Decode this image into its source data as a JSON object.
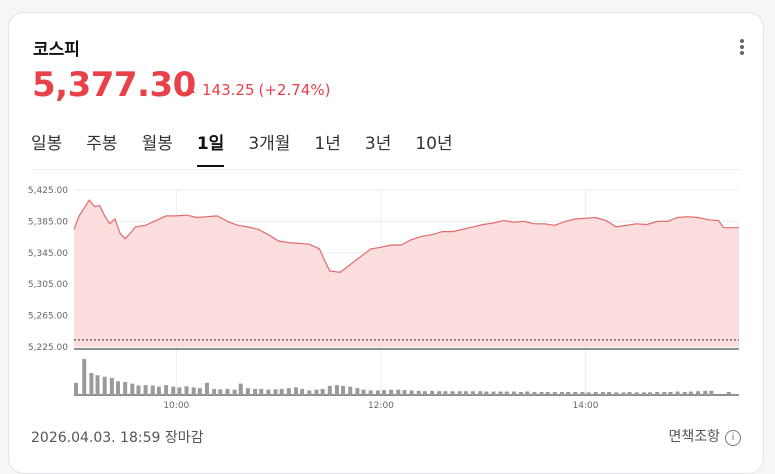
{
  "header": {
    "title": "코스피",
    "price": "5,377.30",
    "change": "143.25",
    "change_pct": "(+2.74%)"
  },
  "tabs": [
    {
      "label": "일봉"
    },
    {
      "label": "주봉"
    },
    {
      "label": "월봉"
    },
    {
      "label": "1일",
      "active": true
    },
    {
      "label": "3개월"
    },
    {
      "label": "1년"
    },
    {
      "label": "3년"
    },
    {
      "label": "10년"
    }
  ],
  "footer": {
    "datetime": "2026.04.03. 18:59 장마감",
    "disclaimer": "면책조항",
    "info_icon": "info-icon"
  },
  "colors": {
    "up": "#e8414a",
    "area": "#fddcdc",
    "line": "#e36a6a",
    "volume": "#9a9a9a"
  },
  "chart_data": {
    "type": "area",
    "y_ticks": [
      "5,425.00",
      "5,385.00",
      "5,345.00",
      "5,305.00",
      "5,265.00",
      "5,225.00"
    ],
    "ylim": [
      5225,
      5425
    ],
    "reference_value": 5234.05,
    "x_ticks": [
      "10:00",
      "12:00",
      "14:00"
    ],
    "x_range_hours": [
      9,
      15.5
    ],
    "price_series": [
      [
        9.0,
        5375
      ],
      [
        9.05,
        5392
      ],
      [
        9.1,
        5402
      ],
      [
        9.15,
        5412
      ],
      [
        9.2,
        5404
      ],
      [
        9.25,
        5405
      ],
      [
        9.3,
        5392
      ],
      [
        9.35,
        5382
      ],
      [
        9.4,
        5388
      ],
      [
        9.45,
        5370
      ],
      [
        9.5,
        5363
      ],
      [
        9.55,
        5370
      ],
      [
        9.6,
        5378
      ],
      [
        9.7,
        5380
      ],
      [
        9.8,
        5386
      ],
      [
        9.9,
        5392
      ],
      [
        10.0,
        5392
      ],
      [
        10.1,
        5393
      ],
      [
        10.2,
        5390
      ],
      [
        10.3,
        5391
      ],
      [
        10.4,
        5392
      ],
      [
        10.5,
        5385
      ],
      [
        10.6,
        5380
      ],
      [
        10.7,
        5378
      ],
      [
        10.8,
        5375
      ],
      [
        10.9,
        5368
      ],
      [
        11.0,
        5360
      ],
      [
        11.1,
        5358
      ],
      [
        11.2,
        5357
      ],
      [
        11.3,
        5356
      ],
      [
        11.4,
        5350
      ],
      [
        11.45,
        5335
      ],
      [
        11.5,
        5322
      ],
      [
        11.6,
        5320
      ],
      [
        11.7,
        5330
      ],
      [
        11.8,
        5340
      ],
      [
        11.9,
        5350
      ],
      [
        12.0,
        5352
      ],
      [
        12.1,
        5355
      ],
      [
        12.2,
        5355
      ],
      [
        12.3,
        5362
      ],
      [
        12.4,
        5366
      ],
      [
        12.5,
        5368
      ],
      [
        12.6,
        5372
      ],
      [
        12.7,
        5372
      ],
      [
        12.8,
        5375
      ],
      [
        12.9,
        5378
      ],
      [
        13.0,
        5381
      ],
      [
        13.1,
        5383
      ],
      [
        13.2,
        5386
      ],
      [
        13.3,
        5384
      ],
      [
        13.4,
        5385
      ],
      [
        13.5,
        5382
      ],
      [
        13.6,
        5382
      ],
      [
        13.7,
        5380
      ],
      [
        13.8,
        5385
      ],
      [
        13.9,
        5388
      ],
      [
        14.0,
        5389
      ],
      [
        14.1,
        5390
      ],
      [
        14.2,
        5386
      ],
      [
        14.3,
        5378
      ],
      [
        14.4,
        5380
      ],
      [
        14.5,
        5382
      ],
      [
        14.6,
        5381
      ],
      [
        14.7,
        5385
      ],
      [
        14.8,
        5385
      ],
      [
        14.9,
        5390
      ],
      [
        15.0,
        5391
      ],
      [
        15.1,
        5390
      ],
      [
        15.2,
        5387
      ],
      [
        15.3,
        5386
      ],
      [
        15.35,
        5377
      ],
      [
        15.5,
        5377
      ]
    ],
    "volume_series": [
      [
        9.02,
        3.2
      ],
      [
        9.1,
        9.5
      ],
      [
        9.17,
        5.8
      ],
      [
        9.23,
        5.2
      ],
      [
        9.3,
        4.8
      ],
      [
        9.37,
        4.5
      ],
      [
        9.43,
        3.6
      ],
      [
        9.5,
        3.4
      ],
      [
        9.57,
        3.0
      ],
      [
        9.63,
        2.5
      ],
      [
        9.7,
        2.6
      ],
      [
        9.77,
        2.5
      ],
      [
        9.83,
        2.2
      ],
      [
        9.9,
        2.6
      ],
      [
        9.97,
        2.2
      ],
      [
        10.03,
        2.0
      ],
      [
        10.1,
        2.3
      ],
      [
        10.17,
        2.0
      ],
      [
        10.23,
        1.8
      ],
      [
        10.3,
        3.2
      ],
      [
        10.37,
        1.6
      ],
      [
        10.43,
        1.5
      ],
      [
        10.5,
        1.6
      ],
      [
        10.57,
        1.4
      ],
      [
        10.63,
        3.0
      ],
      [
        10.7,
        1.8
      ],
      [
        10.77,
        1.6
      ],
      [
        10.83,
        1.6
      ],
      [
        10.9,
        1.4
      ],
      [
        10.97,
        1.5
      ],
      [
        11.03,
        1.6
      ],
      [
        11.1,
        1.8
      ],
      [
        11.17,
        2.0
      ],
      [
        11.23,
        1.6
      ],
      [
        11.3,
        1.2
      ],
      [
        11.37,
        1.4
      ],
      [
        11.43,
        1.6
      ],
      [
        11.5,
        2.4
      ],
      [
        11.57,
        2.6
      ],
      [
        11.63,
        2.4
      ],
      [
        11.7,
        2.2
      ],
      [
        11.77,
        1.8
      ],
      [
        11.83,
        1.4
      ],
      [
        11.9,
        1.2
      ],
      [
        11.97,
        1.2
      ],
      [
        12.03,
        1.3
      ],
      [
        12.1,
        1.4
      ],
      [
        12.17,
        1.4
      ],
      [
        12.23,
        1.3
      ],
      [
        12.3,
        1.2
      ],
      [
        12.37,
        1.1
      ],
      [
        12.43,
        1.0
      ],
      [
        12.5,
        1.1
      ],
      [
        12.57,
        1.0
      ],
      [
        12.63,
        1.0
      ],
      [
        12.7,
        1.0
      ],
      [
        12.77,
        1.0
      ],
      [
        12.83,
        1.0
      ],
      [
        12.9,
        1.0
      ],
      [
        12.97,
        1.0
      ],
      [
        13.03,
        0.9
      ],
      [
        13.1,
        0.9
      ],
      [
        13.17,
        0.9
      ],
      [
        13.23,
        0.9
      ],
      [
        13.3,
        0.9
      ],
      [
        13.37,
        0.8
      ],
      [
        13.43,
        0.9
      ],
      [
        13.5,
        0.8
      ],
      [
        13.57,
        0.8
      ],
      [
        13.63,
        0.8
      ],
      [
        13.7,
        0.8
      ],
      [
        13.77,
        0.8
      ],
      [
        13.83,
        0.8
      ],
      [
        13.9,
        0.8
      ],
      [
        13.97,
        0.8
      ],
      [
        14.03,
        0.7
      ],
      [
        14.1,
        0.8
      ],
      [
        14.17,
        0.8
      ],
      [
        14.23,
        0.8
      ],
      [
        14.3,
        0.7
      ],
      [
        14.37,
        0.7
      ],
      [
        14.43,
        0.8
      ],
      [
        14.5,
        0.7
      ],
      [
        14.57,
        0.7
      ],
      [
        14.63,
        0.7
      ],
      [
        14.7,
        0.8
      ],
      [
        14.77,
        0.8
      ],
      [
        14.83,
        0.8
      ],
      [
        14.9,
        0.9
      ],
      [
        14.97,
        0.8
      ],
      [
        15.03,
        0.9
      ],
      [
        15.1,
        1.0
      ],
      [
        15.17,
        1.1
      ],
      [
        15.23,
        1.1
      ],
      [
        15.4,
        0.8
      ]
    ]
  }
}
